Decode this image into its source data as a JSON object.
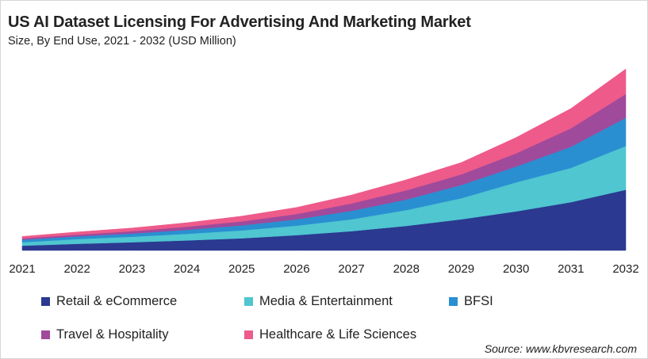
{
  "title": "US AI Dataset Licensing For Advertising And Marketing Market",
  "subtitle": "Size, By End Use, 2021 - 2032 (USD Million)",
  "source": "Source: www.kbvresearch.com",
  "chart_data": {
    "type": "area",
    "stacked": true,
    "title": "US AI Dataset Licensing For Advertising And Marketing Market",
    "subtitle": "Size, By End Use, 2021 - 2032 (USD Million)",
    "categories": [
      "2021",
      "2022",
      "2023",
      "2024",
      "2025",
      "2026",
      "2027",
      "2028",
      "2029",
      "2030",
      "2031",
      "2032"
    ],
    "y_axis_shown": false,
    "ylim": [
      0,
      700
    ],
    "grid": false,
    "legend_placement": "bottom",
    "series": [
      {
        "name": "Retail & eCommerce",
        "color": "#2b3990",
        "values": [
          18,
          25,
          31,
          38,
          46,
          58,
          73,
          93,
          118,
          148,
          183,
          230
        ]
      },
      {
        "name": "Media & Entertainment",
        "color": "#4fc6d0",
        "values": [
          13,
          18,
          21,
          25,
          30,
          36,
          45,
          60,
          80,
          110,
          130,
          166
        ]
      },
      {
        "name": "BFSI",
        "color": "#2a8fd1",
        "values": [
          10,
          10,
          12,
          15,
          19,
          24,
          32,
          40,
          50,
          60,
          80,
          107
        ]
      },
      {
        "name": "Travel & Hospitality",
        "color": "#a04a9c",
        "values": [
          5,
          7,
          9,
          12,
          15,
          20,
          28,
          35,
          40,
          50,
          70,
          90
        ]
      },
      {
        "name": "Healthcare & Life Sciences",
        "color": "#ee5a8a",
        "values": [
          7,
          10,
          12,
          15,
          20,
          25,
          32,
          40,
          45,
          60,
          75,
          95
        ]
      }
    ]
  }
}
